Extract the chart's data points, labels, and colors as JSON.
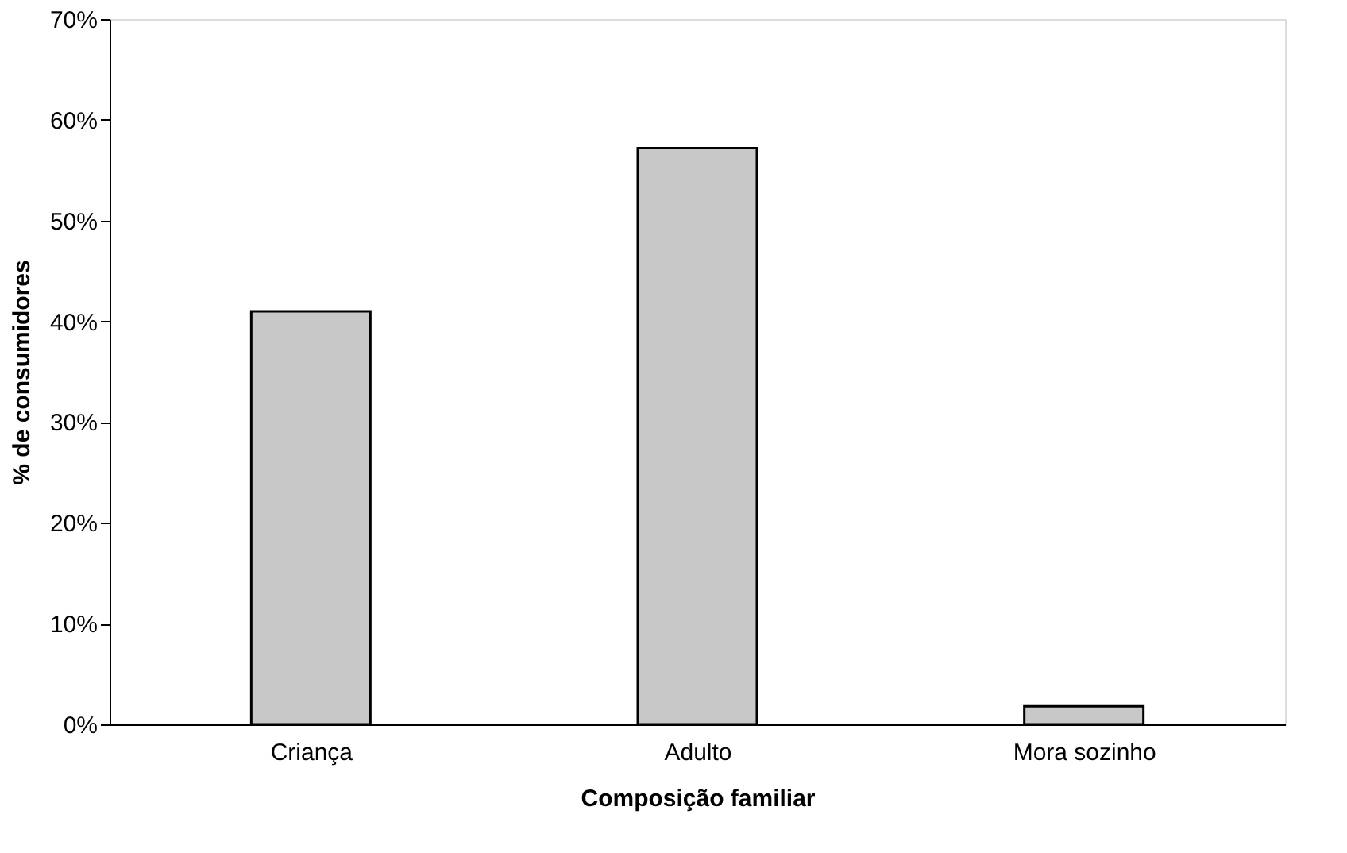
{
  "chart_data": {
    "type": "bar",
    "xlabel": "Composição familiar",
    "ylabel": "% de consumidores",
    "categories": [
      "Criança",
      "Adulto",
      "Mora sozinho"
    ],
    "values": [
      41,
      57.2,
      1.8
    ],
    "color": "#c8c8c8",
    "ylim": [
      0,
      70
    ],
    "yticks": [
      {
        "value": 0,
        "label": "0%"
      },
      {
        "value": 10,
        "label": "10%"
      },
      {
        "value": 20,
        "label": "20%"
      },
      {
        "value": 30,
        "label": "30%"
      },
      {
        "value": 40,
        "label": "40%"
      },
      {
        "value": 50,
        "label": "50%"
      },
      {
        "value": 60,
        "label": "60%"
      },
      {
        "value": 70,
        "label": "70%"
      }
    ],
    "grid": false
  }
}
